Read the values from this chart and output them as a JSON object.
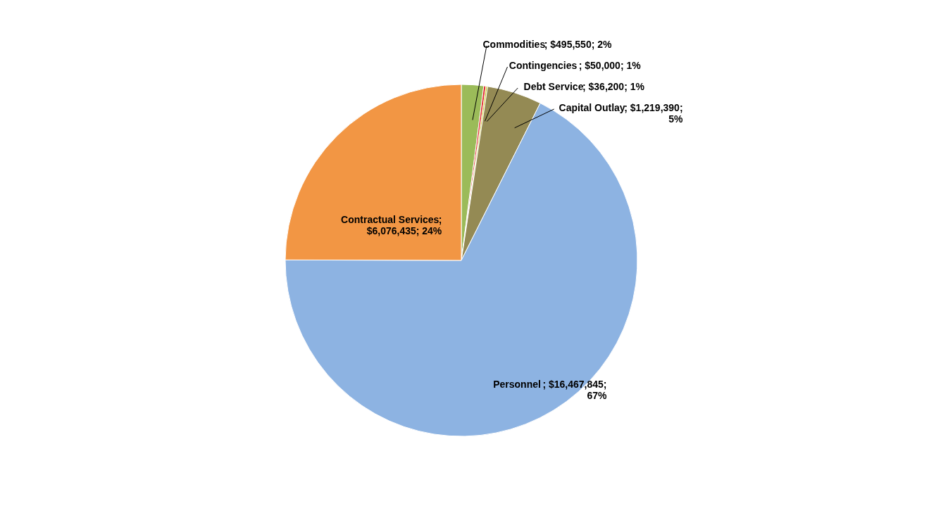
{
  "chart_data": {
    "type": "pie",
    "categories": [
      "Commodities",
      "Contingencies",
      "Debt Service",
      "Capital Outlay",
      "Personnel",
      "Contractual Services"
    ],
    "values": [
      495550,
      50000,
      36200,
      1219390,
      16467845,
      6076435
    ],
    "colors": [
      "#9bbb59",
      "#e03030",
      "#c8c41a",
      "#948a54",
      "#8db3e2",
      "#f29644"
    ],
    "value_labels": [
      "; $495,550; 2%",
      ";  $50,000; 1%",
      "; $36,200; 1%",
      "; $1,219,390;\n5%",
      ";  $16,467,845;\n67%",
      ";\n$6,076,435;   24%"
    ],
    "legend": false
  }
}
